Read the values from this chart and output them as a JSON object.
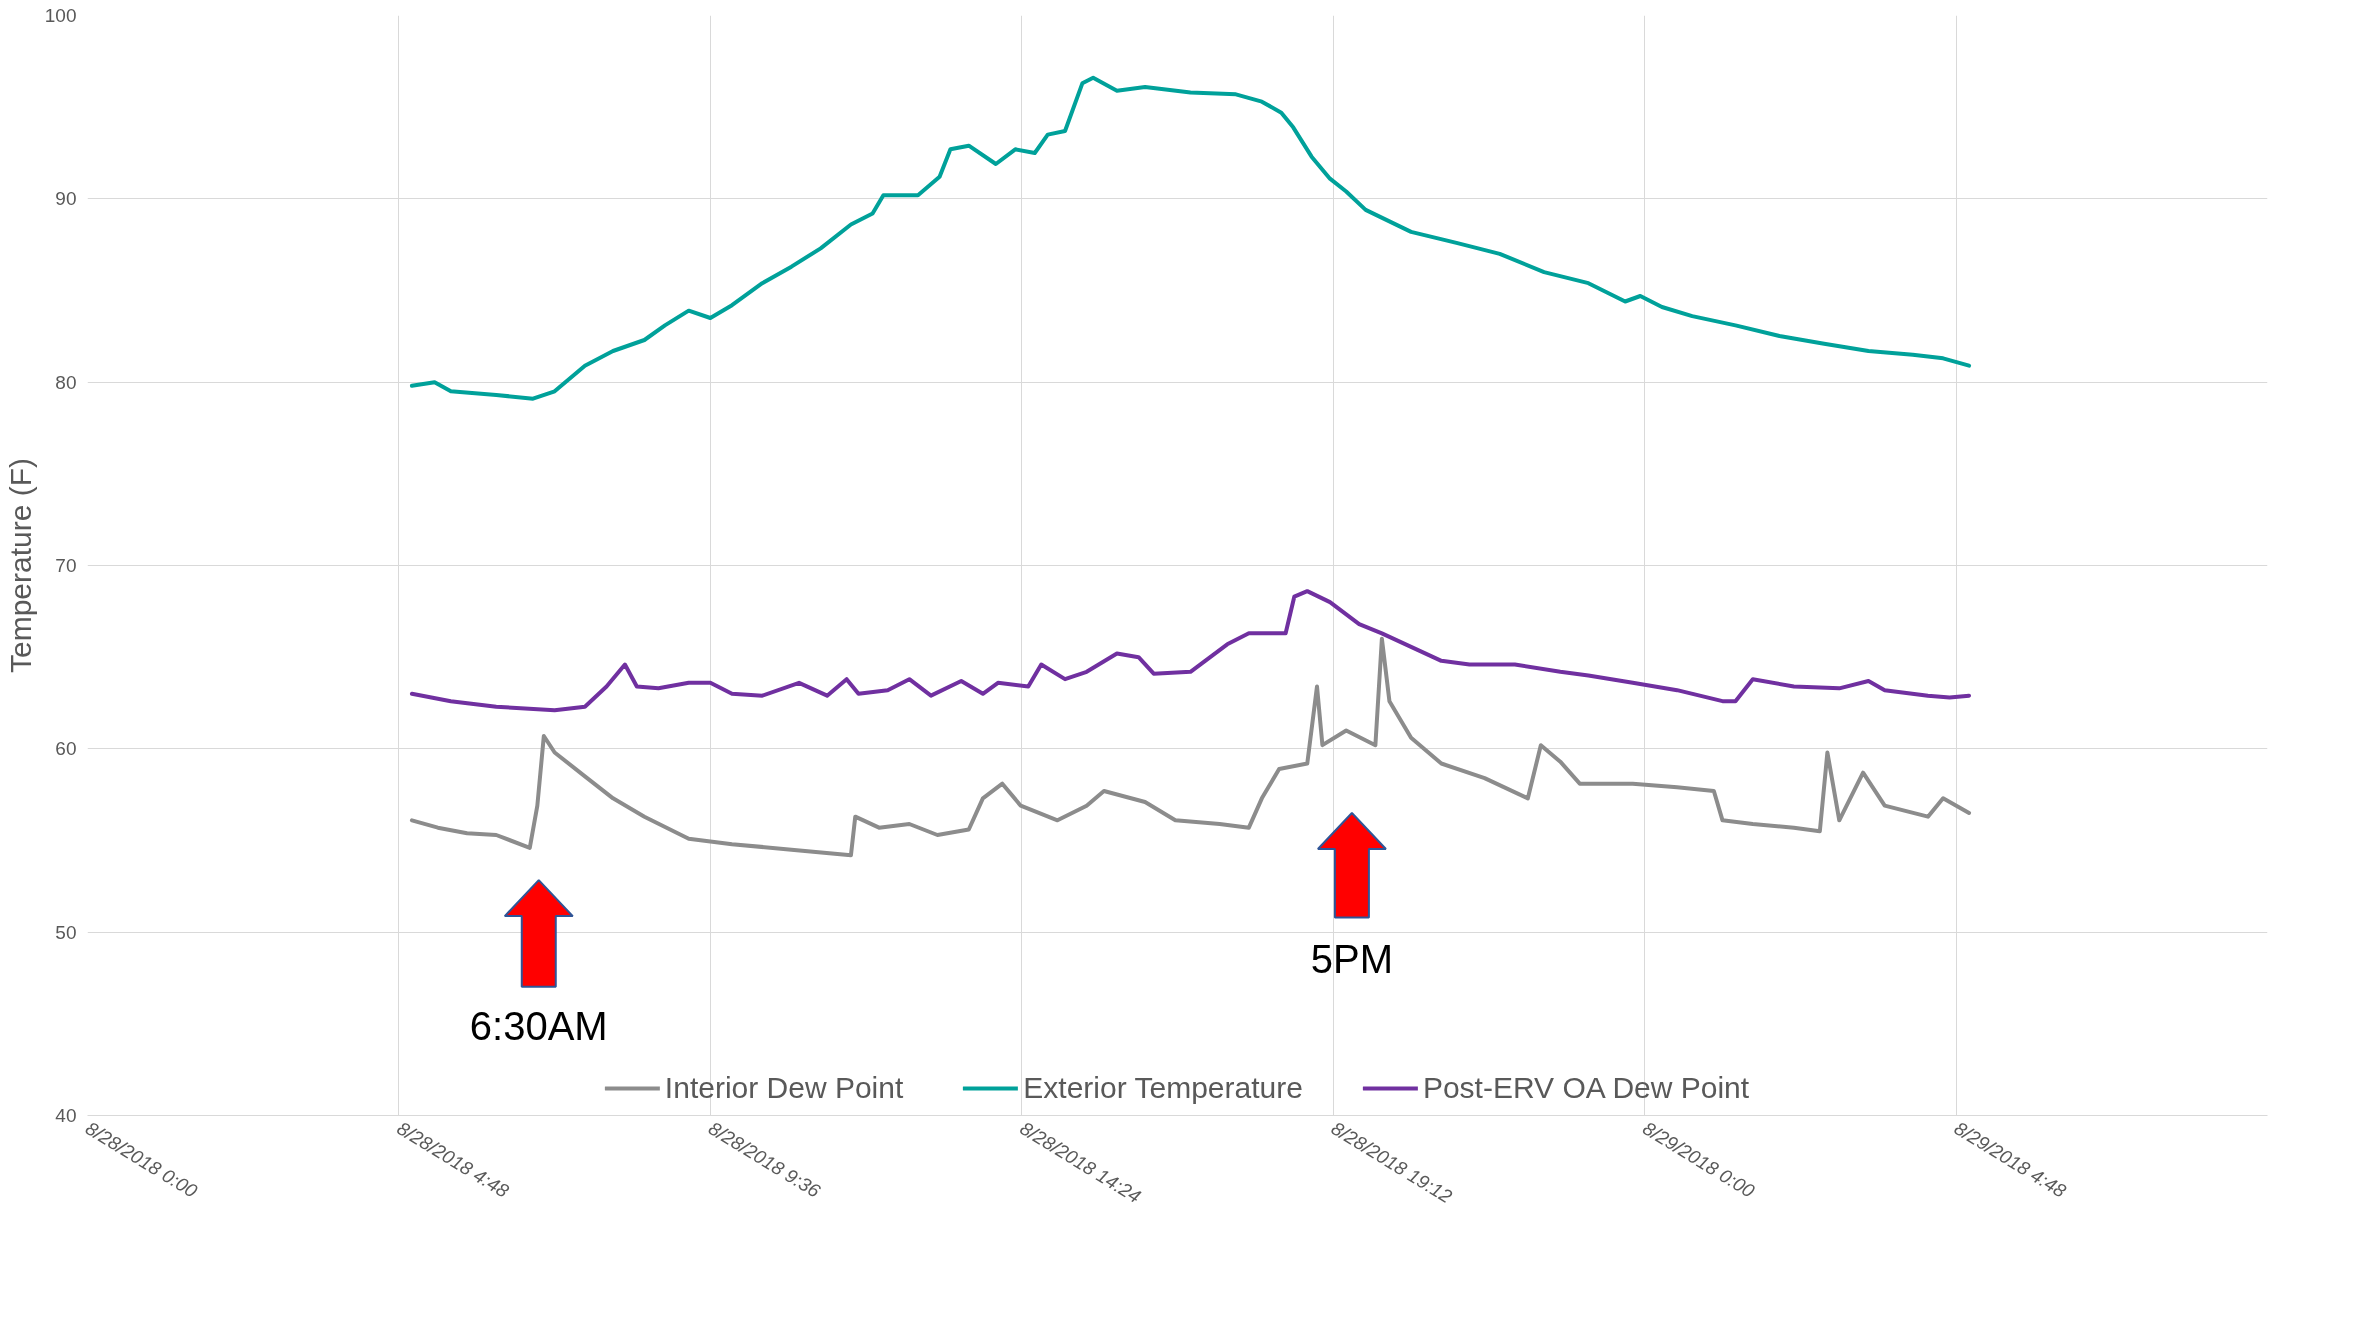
{
  "chart_data": {
    "type": "line",
    "ylabel": "Temperature (F)",
    "xlim": [
      "2018-08-28T00:00",
      "2018-08-29T09:36"
    ],
    "xticks": [
      {
        "value": "2018-08-28T00:00",
        "label": "8/28/2018 0:00"
      },
      {
        "value": "2018-08-28T04:48",
        "label": "8/28/2018 4:48"
      },
      {
        "value": "2018-08-28T09:36",
        "label": "8/28/2018 9:36"
      },
      {
        "value": "2018-08-28T14:24",
        "label": "8/28/2018 14:24"
      },
      {
        "value": "2018-08-28T19:12",
        "label": "8/28/2018 19:12"
      },
      {
        "value": "2018-08-29T00:00",
        "label": "8/29/2018 0:00"
      },
      {
        "value": "2018-08-29T04:48",
        "label": "8/29/2018 4:48"
      }
    ],
    "ylim": [
      40,
      100
    ],
    "yticks": [
      40,
      50,
      60,
      70,
      80,
      90,
      100
    ],
    "grid": true,
    "legend": "bottom",
    "line_style": "solid",
    "series": [
      {
        "name": "Interior Dew Point",
        "color": "#8c8c8c",
        "x": [
          "2018-08-28T05:00",
          "2018-08-28T05:24",
          "2018-08-28T05:51",
          "2018-08-28T06:18",
          "2018-08-28T06:49",
          "2018-08-28T06:56",
          "2018-08-28T07:02",
          "2018-08-28T07:12",
          "2018-08-28T07:40",
          "2018-08-28T08:06",
          "2018-08-28T08:35",
          "2018-08-28T09:16",
          "2018-08-28T09:56",
          "2018-08-28T10:51",
          "2018-08-28T11:46",
          "2018-08-28T11:50",
          "2018-08-28T12:12",
          "2018-08-28T12:40",
          "2018-08-28T13:06",
          "2018-08-28T13:35",
          "2018-08-28T13:48",
          "2018-08-28T14:06",
          "2018-08-28T14:23",
          "2018-08-28T14:57",
          "2018-08-28T15:24",
          "2018-08-28T15:40",
          "2018-08-28T16:18",
          "2018-08-28T16:46",
          "2018-08-28T17:27",
          "2018-08-28T17:54",
          "2018-08-28T18:06",
          "2018-08-28T18:22",
          "2018-08-28T18:48",
          "2018-08-28T18:57",
          "2018-08-28T19:02",
          "2018-08-28T19:24",
          "2018-08-28T19:51",
          "2018-08-28T19:57",
          "2018-08-28T20:04",
          "2018-08-28T20:24",
          "2018-08-28T20:52",
          "2018-08-28T21:32",
          "2018-08-28T22:12",
          "2018-08-28T22:24",
          "2018-08-28T22:42",
          "2018-08-28T23:00",
          "2018-08-28T23:49",
          "2018-08-29T00:30",
          "2018-08-29T01:04",
          "2018-08-29T01:12",
          "2018-08-29T01:40",
          "2018-08-29T02:18",
          "2018-08-29T02:42",
          "2018-08-29T02:49",
          "2018-08-29T03:00",
          "2018-08-29T03:22",
          "2018-08-29T03:42",
          "2018-08-29T04:22",
          "2018-08-29T04:36",
          "2018-08-29T05:00"
        ],
        "values": [
          56.1,
          55.7,
          55.4,
          55.3,
          54.6,
          56.9,
          60.7,
          59.8,
          58.5,
          57.3,
          56.3,
          55.1,
          54.8,
          54.5,
          54.2,
          56.3,
          55.7,
          55.9,
          55.3,
          55.6,
          57.3,
          58.1,
          56.9,
          56.1,
          56.9,
          57.7,
          57.1,
          56.1,
          55.9,
          55.7,
          57.3,
          58.9,
          59.2,
          63.4,
          60.2,
          61.0,
          60.2,
          66.0,
          62.6,
          60.6,
          59.2,
          58.4,
          57.3,
          60.2,
          59.3,
          58.1,
          58.1,
          57.9,
          57.7,
          56.1,
          55.9,
          55.7,
          55.5,
          59.8,
          56.1,
          58.7,
          56.9,
          56.3,
          57.3,
          56.5
        ]
      },
      {
        "name": "Exterior Temperature",
        "color": "#00a19a",
        "x": [
          "2018-08-28T05:00",
          "2018-08-28T05:21",
          "2018-08-28T05:36",
          "2018-08-28T06:18",
          "2018-08-28T06:52",
          "2018-08-28T07:12",
          "2018-08-28T07:40",
          "2018-08-28T08:06",
          "2018-08-28T08:35",
          "2018-08-28T08:54",
          "2018-08-28T09:16",
          "2018-08-28T09:36",
          "2018-08-28T09:56",
          "2018-08-28T10:24",
          "2018-08-28T10:51",
          "2018-08-28T11:18",
          "2018-08-28T11:46",
          "2018-08-28T12:06",
          "2018-08-28T12:16",
          "2018-08-28T12:48",
          "2018-08-28T13:08",
          "2018-08-28T13:18",
          "2018-08-28T13:35",
          "2018-08-28T14:00",
          "2018-08-28T14:18",
          "2018-08-28T14:36",
          "2018-08-28T14:48",
          "2018-08-28T15:04",
          "2018-08-28T15:20",
          "2018-08-28T15:30",
          "2018-08-28T15:52",
          "2018-08-28T16:18",
          "2018-08-28T17:00",
          "2018-08-28T17:42",
          "2018-08-28T18:06",
          "2018-08-28T18:24",
          "2018-08-28T18:35",
          "2018-08-28T18:52",
          "2018-08-28T19:09",
          "2018-08-28T19:24",
          "2018-08-28T19:42",
          "2018-08-28T20:24",
          "2018-08-28T21:06",
          "2018-08-28T21:46",
          "2018-08-28T22:27",
          "2018-08-28T23:08",
          "2018-08-28T23:42",
          "2018-08-28T23:56",
          "2018-08-29T00:16",
          "2018-08-29T00:44",
          "2018-08-29T01:24",
          "2018-08-29T02:06",
          "2018-08-29T02:46",
          "2018-08-29T03:27",
          "2018-08-29T04:08",
          "2018-08-29T04:36",
          "2018-08-29T05:00"
        ],
        "values": [
          79.8,
          80.0,
          79.5,
          79.3,
          79.1,
          79.5,
          80.9,
          81.7,
          82.3,
          83.1,
          83.9,
          83.5,
          84.2,
          85.4,
          86.3,
          87.3,
          88.6,
          89.2,
          90.2,
          90.2,
          91.2,
          92.7,
          92.9,
          91.9,
          92.7,
          92.5,
          93.5,
          93.7,
          96.3,
          96.6,
          95.9,
          96.1,
          95.8,
          95.7,
          95.3,
          94.7,
          93.9,
          92.3,
          91.1,
          90.4,
          89.4,
          88.2,
          87.6,
          87.0,
          86.0,
          85.4,
          84.4,
          84.7,
          84.1,
          83.6,
          83.1,
          82.5,
          82.1,
          81.7,
          81.5,
          81.3,
          80.9
        ]
      },
      {
        "name": "Post-ERV OA Dew Point",
        "color": "#7030a0",
        "x": [
          "2018-08-28T05:00",
          "2018-08-28T05:36",
          "2018-08-28T06:18",
          "2018-08-28T07:12",
          "2018-08-28T07:40",
          "2018-08-28T08:00",
          "2018-08-28T08:17",
          "2018-08-28T08:28",
          "2018-08-28T08:48",
          "2018-08-28T09:16",
          "2018-08-28T09:36",
          "2018-08-28T09:56",
          "2018-08-28T10:24",
          "2018-08-28T10:58",
          "2018-08-28T11:24",
          "2018-08-28T11:42",
          "2018-08-28T11:53",
          "2018-08-28T12:20",
          "2018-08-28T12:40",
          "2018-08-28T13:00",
          "2018-08-28T13:28",
          "2018-08-28T13:48",
          "2018-08-28T14:02",
          "2018-08-28T14:30",
          "2018-08-28T14:42",
          "2018-08-28T15:04",
          "2018-08-28T15:24",
          "2018-08-28T15:52",
          "2018-08-28T16:12",
          "2018-08-28T16:26",
          "2018-08-28T17:00",
          "2018-08-28T17:34",
          "2018-08-28T17:54",
          "2018-08-28T18:14",
          "2018-08-28T18:28",
          "2018-08-28T18:36",
          "2018-08-28T18:48",
          "2018-08-28T19:09",
          "2018-08-28T19:36",
          "2018-08-28T19:57",
          "2018-08-28T20:30",
          "2018-08-28T20:52",
          "2018-08-28T21:18",
          "2018-08-28T22:00",
          "2018-08-28T22:42",
          "2018-08-28T23:08",
          "2018-08-28T23:49",
          "2018-08-29T00:30",
          "2018-08-29T01:12",
          "2018-08-29T01:24",
          "2018-08-29T01:40",
          "2018-08-29T02:18",
          "2018-08-29T03:00",
          "2018-08-29T03:27",
          "2018-08-29T03:42",
          "2018-08-29T04:22",
          "2018-08-29T04:42",
          "2018-08-29T05:00"
        ],
        "values": [
          63.0,
          62.6,
          62.3,
          62.1,
          62.3,
          63.4,
          64.6,
          63.4,
          63.3,
          63.6,
          63.6,
          63.0,
          62.9,
          63.6,
          62.9,
          63.8,
          63.0,
          63.2,
          63.8,
          62.9,
          63.7,
          63.0,
          63.6,
          63.4,
          64.6,
          63.8,
          64.2,
          65.2,
          65.0,
          64.1,
          64.2,
          65.7,
          66.3,
          66.3,
          66.3,
          68.3,
          68.6,
          68.0,
          66.8,
          66.3,
          65.4,
          64.8,
          64.6,
          64.6,
          64.2,
          64.0,
          63.6,
          63.2,
          62.6,
          62.6,
          63.8,
          63.4,
          63.3,
          63.7,
          63.2,
          62.9,
          62.8,
          62.9
        ]
      }
    ],
    "annotations": [
      "6:30AM",
      "5PM"
    ]
  }
}
